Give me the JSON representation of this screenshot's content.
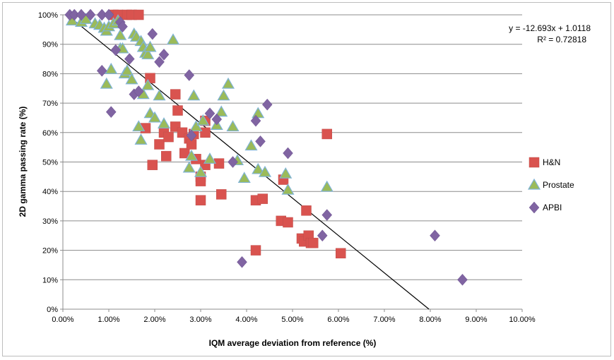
{
  "chart_data": {
    "type": "scatter",
    "xlabel": "IQM average deviation from reference (%)",
    "ylabel": "2D gamma passing rate (%)",
    "xlim": [
      0,
      10
    ],
    "ylim": [
      0,
      100
    ],
    "x_ticks": [
      "0.00%",
      "1.00%",
      "2.00%",
      "3.00%",
      "4.00%",
      "5.00%",
      "6.00%",
      "7.00%",
      "8.00%",
      "9.00%",
      "10.00%"
    ],
    "y_ticks": [
      "0%",
      "10%",
      "20%",
      "30%",
      "40%",
      "50%",
      "60%",
      "70%",
      "80%",
      "90%",
      "100%"
    ],
    "grid": "horizontal",
    "legend": "right",
    "trendline": {
      "slope_percent": -12.693,
      "intercept_fraction": 1.0118,
      "equation": "y = -12.693x + 1.0118",
      "r_squared": "R² = 0.72818",
      "color": "#000000"
    },
    "series": [
      {
        "name": "H&N",
        "marker": "square",
        "color": "#d9534f",
        "points": [
          [
            1.1,
            100
          ],
          [
            1.2,
            100
          ],
          [
            1.4,
            100
          ],
          [
            1.5,
            100
          ],
          [
            1.65,
            100
          ],
          [
            1.9,
            78.5
          ],
          [
            1.8,
            61.5
          ],
          [
            1.95,
            49
          ],
          [
            2.1,
            56
          ],
          [
            2.2,
            60
          ],
          [
            2.25,
            52
          ],
          [
            2.3,
            58.5
          ],
          [
            2.45,
            73
          ],
          [
            2.5,
            67.5
          ],
          [
            2.45,
            62
          ],
          [
            2.6,
            60
          ],
          [
            2.65,
            53
          ],
          [
            2.75,
            58
          ],
          [
            2.8,
            56
          ],
          [
            2.85,
            59.5
          ],
          [
            2.9,
            51
          ],
          [
            3.0,
            45
          ],
          [
            3.0,
            43.5
          ],
          [
            3.0,
            37
          ],
          [
            3.1,
            49
          ],
          [
            3.1,
            60
          ],
          [
            3.1,
            64
          ],
          [
            3.4,
            49.5
          ],
          [
            3.45,
            39
          ],
          [
            4.2,
            37
          ],
          [
            4.2,
            20
          ],
          [
            4.35,
            37.5
          ],
          [
            4.75,
            30
          ],
          [
            4.8,
            44
          ],
          [
            4.9,
            29.5
          ],
          [
            5.2,
            24
          ],
          [
            5.25,
            23
          ],
          [
            5.3,
            33.5
          ],
          [
            5.35,
            25
          ],
          [
            5.4,
            22.5
          ],
          [
            5.45,
            22.5
          ],
          [
            5.75,
            59.5
          ],
          [
            6.05,
            19
          ]
        ]
      },
      {
        "name": "Prostate",
        "marker": "triangle",
        "color": "#9bbb59",
        "points": [
          [
            0.2,
            98
          ],
          [
            0.4,
            97.5
          ],
          [
            0.5,
            98.5
          ],
          [
            0.7,
            97
          ],
          [
            0.8,
            96.5
          ],
          [
            0.9,
            95.5
          ],
          [
            0.95,
            94.5
          ],
          [
            1.0,
            96
          ],
          [
            1.1,
            97
          ],
          [
            1.2,
            98
          ],
          [
            0.95,
            76.5
          ],
          [
            1.05,
            81.5
          ],
          [
            1.25,
            93
          ],
          [
            1.25,
            88.5
          ],
          [
            1.3,
            88.5
          ],
          [
            1.35,
            80
          ],
          [
            1.4,
            81
          ],
          [
            1.5,
            78
          ],
          [
            1.55,
            93.5
          ],
          [
            1.6,
            92.5
          ],
          [
            1.7,
            91
          ],
          [
            1.75,
            89
          ],
          [
            1.8,
            87
          ],
          [
            1.85,
            86.5
          ],
          [
            1.9,
            89
          ],
          [
            1.65,
            62
          ],
          [
            1.7,
            57.5
          ],
          [
            1.75,
            73
          ],
          [
            1.85,
            76
          ],
          [
            1.9,
            66.5
          ],
          [
            2.0,
            65
          ],
          [
            2.1,
            72.5
          ],
          [
            2.2,
            63
          ],
          [
            2.4,
            91.5
          ],
          [
            2.75,
            48
          ],
          [
            2.8,
            52
          ],
          [
            2.85,
            72.5
          ],
          [
            2.9,
            62
          ],
          [
            3.0,
            46.5
          ],
          [
            3.05,
            64
          ],
          [
            3.2,
            51
          ],
          [
            3.35,
            62.5
          ],
          [
            3.45,
            67
          ],
          [
            3.5,
            72.5
          ],
          [
            3.6,
            76.5
          ],
          [
            3.7,
            62
          ],
          [
            3.8,
            50.5
          ],
          [
            3.95,
            44.5
          ],
          [
            4.1,
            55.5
          ],
          [
            4.25,
            66.5
          ],
          [
            4.25,
            47.5
          ],
          [
            4.4,
            46.5
          ],
          [
            4.85,
            46
          ],
          [
            4.9,
            40.5
          ],
          [
            5.75,
            41.5
          ]
        ]
      },
      {
        "name": "APBI",
        "marker": "diamond",
        "color": "#8064a2",
        "points": [
          [
            0.15,
            100
          ],
          [
            0.25,
            100
          ],
          [
            0.4,
            100
          ],
          [
            0.6,
            100
          ],
          [
            0.85,
            100
          ],
          [
            1.0,
            100
          ],
          [
            1.25,
            97.5
          ],
          [
            1.3,
            96
          ],
          [
            0.85,
            81
          ],
          [
            1.05,
            67
          ],
          [
            1.15,
            88
          ],
          [
            1.45,
            85
          ],
          [
            1.55,
            73
          ],
          [
            1.65,
            74
          ],
          [
            1.95,
            93.5
          ],
          [
            2.1,
            84
          ],
          [
            2.2,
            86.5
          ],
          [
            2.75,
            79.5
          ],
          [
            2.8,
            59
          ],
          [
            3.2,
            66.5
          ],
          [
            3.35,
            64.5
          ],
          [
            3.7,
            50
          ],
          [
            3.9,
            16
          ],
          [
            4.2,
            64
          ],
          [
            4.3,
            57
          ],
          [
            4.45,
            69.5
          ],
          [
            4.9,
            53
          ],
          [
            5.65,
            25
          ],
          [
            5.75,
            32
          ],
          [
            8.1,
            25
          ],
          [
            8.7,
            10
          ]
        ]
      }
    ]
  }
}
